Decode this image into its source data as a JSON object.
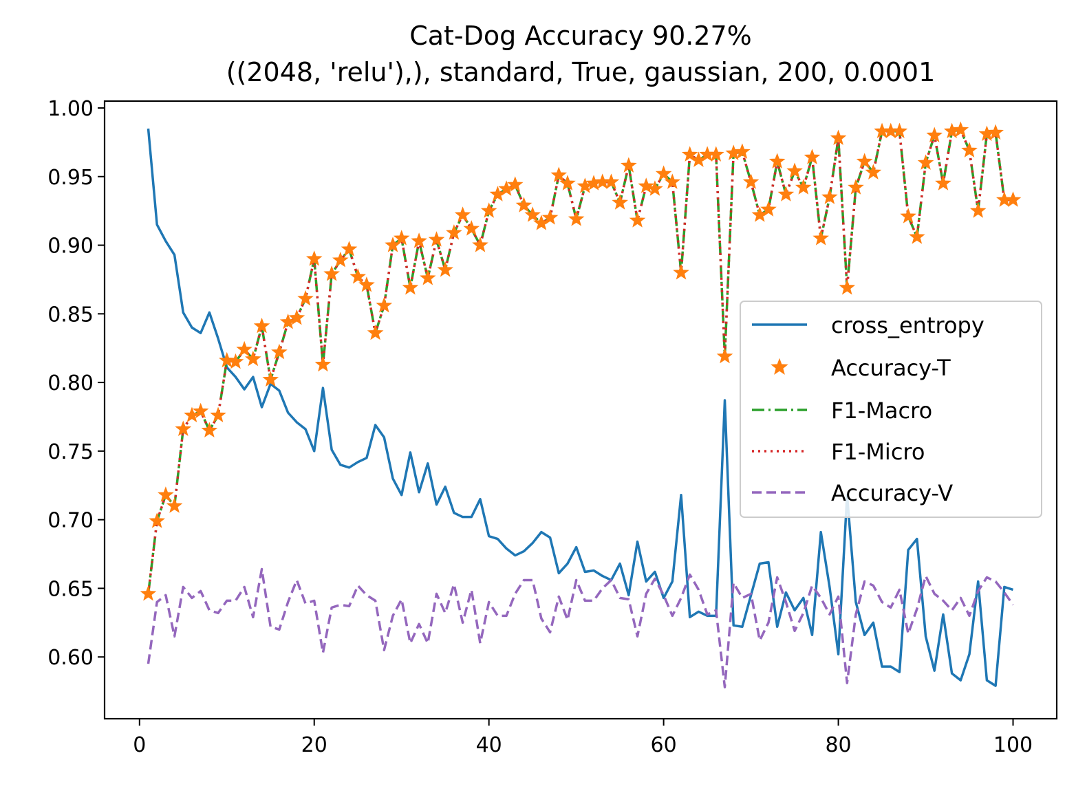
{
  "chart_data": {
    "type": "line",
    "title": "Cat-Dog Accuracy 90.27%",
    "subtitle": "((2048, 'relu'),), standard, True, gaussian, 200, 0.0001",
    "xlabel": "",
    "ylabel": "",
    "xlim": [
      -4,
      105
    ],
    "ylim": [
      0.555,
      1.005
    ],
    "xticks": [
      0,
      20,
      40,
      60,
      80,
      100
    ],
    "yticks": [
      0.6,
      0.65,
      0.7,
      0.75,
      0.8,
      0.85,
      0.9,
      0.95,
      1.0
    ],
    "xtick_labels": [
      "0",
      "20",
      "40",
      "60",
      "80",
      "100"
    ],
    "ytick_labels": [
      "0.60",
      "0.65",
      "0.70",
      "0.75",
      "0.80",
      "0.85",
      "0.90",
      "0.95",
      "1.00"
    ],
    "grid": false,
    "legend_position": "right",
    "series": [
      {
        "name": "cross_entropy",
        "color": "#1f77b4",
        "style": "solid",
        "values": [
          0.985,
          0.915,
          0.903,
          0.893,
          0.851,
          0.84,
          0.836,
          0.851,
          0.832,
          0.811,
          0.804,
          0.795,
          0.804,
          0.782,
          0.799,
          0.794,
          0.778,
          0.771,
          0.766,
          0.75,
          0.796,
          0.751,
          0.74,
          0.738,
          0.742,
          0.745,
          0.769,
          0.76,
          0.73,
          0.718,
          0.749,
          0.72,
          0.741,
          0.711,
          0.724,
          0.705,
          0.702,
          0.702,
          0.715,
          0.688,
          0.686,
          0.679,
          0.674,
          0.677,
          0.683,
          0.691,
          0.687,
          0.661,
          0.668,
          0.68,
          0.662,
          0.663,
          0.659,
          0.656,
          0.668,
          0.645,
          0.684,
          0.655,
          0.662,
          0.643,
          0.655,
          0.718,
          0.629,
          0.633,
          0.63,
          0.63,
          0.787,
          0.623,
          0.622,
          0.645,
          0.668,
          0.669,
          0.622,
          0.647,
          0.634,
          0.643,
          0.616,
          0.691,
          0.651,
          0.602,
          0.718,
          0.64,
          0.616,
          0.625,
          0.593,
          0.593,
          0.589,
          0.678,
          0.686,
          0.615,
          0.59,
          0.631,
          0.588,
          0.583,
          0.602,
          0.655,
          0.583,
          0.579,
          0.651,
          0.649
        ]
      },
      {
        "name": "Accuracy-T",
        "color": "#ff7f0e",
        "style": "star",
        "values": [
          0.646,
          0.699,
          0.718,
          0.71,
          0.766,
          0.776,
          0.779,
          0.765,
          0.776,
          0.816,
          0.815,
          0.824,
          0.817,
          0.841,
          0.802,
          0.822,
          0.844,
          0.847,
          0.861,
          0.89,
          0.813,
          0.879,
          0.889,
          0.897,
          0.877,
          0.871,
          0.836,
          0.856,
          0.9,
          0.905,
          0.869,
          0.903,
          0.876,
          0.904,
          0.882,
          0.909,
          0.922,
          0.912,
          0.9,
          0.925,
          0.937,
          0.941,
          0.944,
          0.929,
          0.922,
          0.916,
          0.92,
          0.951,
          0.945,
          0.919,
          0.943,
          0.945,
          0.946,
          0.946,
          0.931,
          0.958,
          0.918,
          0.943,
          0.941,
          0.952,
          0.946,
          0.88,
          0.966,
          0.962,
          0.966,
          0.966,
          0.819,
          0.967,
          0.968,
          0.946,
          0.922,
          0.926,
          0.961,
          0.937,
          0.954,
          0.942,
          0.964,
          0.905,
          0.935,
          0.978,
          0.869,
          0.942,
          0.961,
          0.953,
          0.983,
          0.983,
          0.983,
          0.921,
          0.906,
          0.96,
          0.98,
          0.945,
          0.983,
          0.984,
          0.969,
          0.925,
          0.981,
          0.982,
          0.933,
          0.933
        ]
      },
      {
        "name": "F1-Macro",
        "color": "#2ca02c",
        "style": "dashdot",
        "values": [
          0.646,
          0.699,
          0.718,
          0.71,
          0.766,
          0.776,
          0.779,
          0.765,
          0.776,
          0.816,
          0.815,
          0.824,
          0.817,
          0.841,
          0.802,
          0.822,
          0.844,
          0.847,
          0.861,
          0.89,
          0.813,
          0.879,
          0.889,
          0.897,
          0.877,
          0.871,
          0.836,
          0.856,
          0.9,
          0.905,
          0.869,
          0.903,
          0.876,
          0.904,
          0.882,
          0.909,
          0.922,
          0.912,
          0.9,
          0.925,
          0.937,
          0.941,
          0.944,
          0.929,
          0.922,
          0.916,
          0.92,
          0.951,
          0.945,
          0.919,
          0.943,
          0.945,
          0.946,
          0.946,
          0.931,
          0.958,
          0.918,
          0.943,
          0.941,
          0.952,
          0.946,
          0.88,
          0.966,
          0.962,
          0.966,
          0.966,
          0.819,
          0.967,
          0.968,
          0.946,
          0.922,
          0.926,
          0.961,
          0.937,
          0.954,
          0.942,
          0.964,
          0.905,
          0.935,
          0.978,
          0.869,
          0.942,
          0.961,
          0.953,
          0.983,
          0.983,
          0.983,
          0.921,
          0.906,
          0.96,
          0.98,
          0.945,
          0.983,
          0.984,
          0.969,
          0.925,
          0.981,
          0.982,
          0.933,
          0.933
        ]
      },
      {
        "name": "F1-Micro",
        "color": "#d62728",
        "style": "dotted",
        "values": [
          0.646,
          0.699,
          0.718,
          0.71,
          0.766,
          0.776,
          0.779,
          0.765,
          0.776,
          0.816,
          0.815,
          0.824,
          0.817,
          0.841,
          0.802,
          0.822,
          0.844,
          0.847,
          0.861,
          0.89,
          0.813,
          0.879,
          0.889,
          0.897,
          0.877,
          0.871,
          0.836,
          0.856,
          0.9,
          0.905,
          0.869,
          0.903,
          0.876,
          0.904,
          0.882,
          0.909,
          0.922,
          0.912,
          0.9,
          0.925,
          0.937,
          0.941,
          0.944,
          0.929,
          0.922,
          0.916,
          0.92,
          0.951,
          0.945,
          0.919,
          0.943,
          0.945,
          0.946,
          0.946,
          0.931,
          0.958,
          0.918,
          0.943,
          0.941,
          0.952,
          0.946,
          0.88,
          0.966,
          0.962,
          0.966,
          0.966,
          0.819,
          0.967,
          0.968,
          0.946,
          0.922,
          0.926,
          0.961,
          0.937,
          0.954,
          0.942,
          0.964,
          0.905,
          0.935,
          0.978,
          0.869,
          0.942,
          0.961,
          0.953,
          0.983,
          0.983,
          0.983,
          0.921,
          0.906,
          0.96,
          0.98,
          0.945,
          0.983,
          0.984,
          0.969,
          0.925,
          0.981,
          0.982,
          0.933,
          0.933
        ]
      },
      {
        "name": "Accuracy-V",
        "color": "#9467bd",
        "style": "dashed",
        "values": [
          0.595,
          0.64,
          0.645,
          0.615,
          0.651,
          0.643,
          0.648,
          0.634,
          0.632,
          0.641,
          0.641,
          0.651,
          0.629,
          0.664,
          0.622,
          0.62,
          0.64,
          0.656,
          0.639,
          0.641,
          0.603,
          0.636,
          0.638,
          0.637,
          0.652,
          0.645,
          0.641,
          0.605,
          0.63,
          0.642,
          0.61,
          0.624,
          0.61,
          0.646,
          0.632,
          0.653,
          0.625,
          0.649,
          0.61,
          0.64,
          0.63,
          0.63,
          0.646,
          0.656,
          0.656,
          0.628,
          0.618,
          0.644,
          0.627,
          0.656,
          0.641,
          0.641,
          0.65,
          0.656,
          0.643,
          0.642,
          0.615,
          0.646,
          0.657,
          0.645,
          0.63,
          0.643,
          0.66,
          0.649,
          0.631,
          0.634,
          0.578,
          0.654,
          0.643,
          0.646,
          0.612,
          0.625,
          0.658,
          0.64,
          0.619,
          0.632,
          0.652,
          0.643,
          0.631,
          0.644,
          0.581,
          0.631,
          0.655,
          0.652,
          0.64,
          0.636,
          0.649,
          0.617,
          0.635,
          0.659,
          0.646,
          0.641,
          0.634,
          0.643,
          0.63,
          0.648,
          0.658,
          0.655,
          0.647,
          0.638
        ]
      }
    ]
  }
}
